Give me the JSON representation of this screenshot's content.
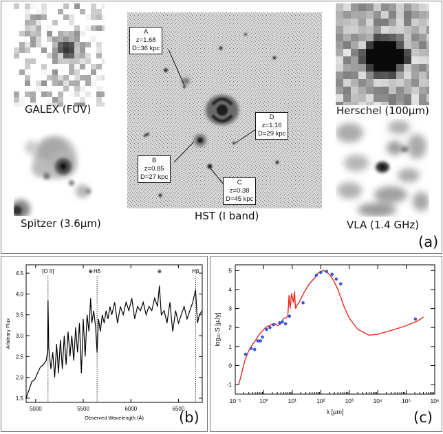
{
  "panel_a": {
    "letter": "(a)",
    "captions": {
      "galex": "GALEX (FUV)",
      "spitzer": "Spitzer (3.6µm)",
      "hst": "HST (I band)",
      "herschel": "Herschel  (100µm)",
      "vla": "VLA (1.4 GHz)"
    },
    "labels": [
      {
        "id": "A",
        "z": "z=1.68",
        "d": "D=36 kpc"
      },
      {
        "id": "B",
        "z": "z=0.85",
        "d": "D=27 kpc"
      },
      {
        "id": "C",
        "z": "z=0.38",
        "d": "D=45 kpc"
      },
      {
        "id": "D",
        "z": "z=1.16",
        "d": "D=29 kpc"
      }
    ]
  },
  "panel_b": {
    "letter": "(b)"
  },
  "panel_c": {
    "letter": "(c)"
  },
  "colors": {
    "sed_line": "#e8261e",
    "points": "#3355e0",
    "spectrum": "#000000"
  },
  "chart_data": [
    {
      "type": "line",
      "name": "spectrum",
      "title": "",
      "xlabel": "Observed Wavelength (Å)",
      "ylabel": "Arbitrary Flux",
      "xlim": [
        4900,
        6750
      ],
      "ylim": [
        1.4,
        4.7
      ],
      "xticks": [
        5000,
        5500,
        6000,
        6500
      ],
      "yticks": [
        1.5,
        2.0,
        2.5,
        3.0,
        3.5,
        4.0,
        4.5
      ],
      "annotations": [
        {
          "text": "[O II]",
          "x": 5130
        },
        {
          "text": "Hδ",
          "x": 5645
        },
        {
          "text": "⊕",
          "x": 5577
        },
        {
          "text": "⊕",
          "x": 6300
        },
        {
          "text": "Hβ",
          "x": 6680
        }
      ],
      "x": [
        4900,
        4930,
        4960,
        4990,
        5020,
        5050,
        5080,
        5110,
        5125,
        5130,
        5138,
        5160,
        5180,
        5200,
        5220,
        5240,
        5260,
        5280,
        5300,
        5320,
        5340,
        5360,
        5380,
        5400,
        5420,
        5440,
        5460,
        5480,
        5500,
        5520,
        5540,
        5560,
        5577,
        5590,
        5610,
        5630,
        5645,
        5660,
        5680,
        5700,
        5720,
        5740,
        5760,
        5780,
        5800,
        5830,
        5860,
        5890,
        5920,
        5950,
        5980,
        6010,
        6040,
        6070,
        6100,
        6130,
        6160,
        6190,
        6220,
        6250,
        6280,
        6300,
        6320,
        6350,
        6380,
        6410,
        6440,
        6470,
        6500,
        6530,
        6560,
        6590,
        6620,
        6650,
        6680,
        6700,
        6720,
        6750
      ],
      "values": [
        1.5,
        1.7,
        1.9,
        1.95,
        2.1,
        2.25,
        2.3,
        2.4,
        2.6,
        3.85,
        2.7,
        2.2,
        2.6,
        2.0,
        2.8,
        2.1,
        2.9,
        2.2,
        3.0,
        2.3,
        3.1,
        2.5,
        3.0,
        2.4,
        3.2,
        2.6,
        3.3,
        2.1,
        3.4,
        2.5,
        3.5,
        3.1,
        3.9,
        3.3,
        3.6,
        3.2,
        2.6,
        3.4,
        3.1,
        3.5,
        3.3,
        3.6,
        3.4,
        3.7,
        3.5,
        3.8,
        3.3,
        3.7,
        3.5,
        3.8,
        3.6,
        3.9,
        3.4,
        3.7,
        3.6,
        3.8,
        3.5,
        3.7,
        3.6,
        3.9,
        3.7,
        4.2,
        3.5,
        3.6,
        3.3,
        3.8,
        3.1,
        3.6,
        3.3,
        3.5,
        3.7,
        3.4,
        3.6,
        3.8,
        4.1,
        3.3,
        3.5,
        3.6
      ]
    },
    {
      "type": "line",
      "name": "sed",
      "title": "",
      "xlabel": "λ [µm]",
      "ylabel": "log₁₀ S [µJy]",
      "xscale": "log",
      "xlim": [
        0.1,
        1000000
      ],
      "ylim": [
        -1.5,
        5.3
      ],
      "xtick_labels": [
        "10⁻¹",
        "10⁰",
        "10¹",
        "10²",
        "10³",
        "10⁴",
        "10⁵",
        "10⁶"
      ],
      "yticks": [
        -1,
        0,
        1,
        2,
        3,
        4,
        5
      ],
      "model": {
        "x": [
          0.13,
          0.15,
          0.18,
          0.22,
          0.3,
          0.4,
          0.5,
          0.7,
          1.0,
          1.3,
          1.8,
          2.5,
          3.0,
          4.0,
          5.0,
          6.0,
          7.0,
          7.7,
          8.5,
          9.5,
          11,
          12,
          13,
          15,
          17,
          20,
          25,
          30,
          40,
          60,
          80,
          100,
          130,
          160,
          200,
          250,
          300,
          400,
          500,
          700,
          1000,
          2000,
          5000,
          10000,
          30000,
          100000,
          250000,
          400000
        ],
        "y": [
          -1.0,
          -0.7,
          -0.2,
          0.3,
          0.8,
          1.1,
          1.3,
          1.65,
          1.9,
          2.05,
          2.15,
          2.2,
          2.1,
          2.2,
          2.5,
          2.5,
          2.6,
          3.7,
          3.0,
          3.8,
          3.3,
          3.9,
          3.0,
          3.2,
          3.3,
          3.5,
          3.8,
          4.0,
          4.3,
          4.6,
          4.85,
          4.95,
          5.0,
          4.9,
          4.8,
          4.6,
          4.4,
          4.0,
          3.6,
          3.0,
          2.5,
          1.9,
          1.6,
          1.65,
          1.85,
          2.1,
          2.35,
          2.55
        ]
      },
      "points": {
        "x": [
          0.23,
          0.36,
          0.48,
          0.62,
          0.77,
          0.9,
          1.25,
          1.65,
          2.2,
          3.6,
          4.5,
          5.8,
          8.0,
          24,
          70,
          100,
          160,
          250,
          350,
          500,
          210000
        ],
        "y": [
          0.6,
          0.9,
          0.85,
          1.3,
          1.3,
          1.5,
          1.9,
          2.0,
          2.15,
          2.25,
          2.3,
          2.2,
          2.6,
          3.3,
          4.75,
          4.9,
          4.95,
          4.8,
          4.55,
          4.3,
          2.45
        ]
      }
    }
  ]
}
